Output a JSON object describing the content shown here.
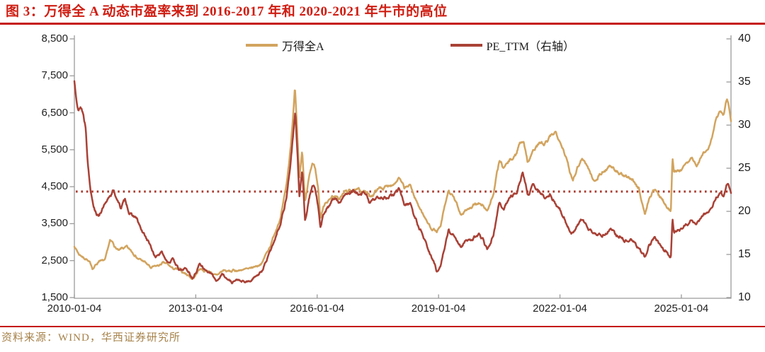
{
  "title": "图 3：万得全 A 动态市盈率来到 2016-2017 年和 2020-2021 年牛市的高位",
  "source": "资料来源：WIND，华西证券研究所",
  "colors": {
    "title_red": "#cf1d12",
    "rule_red": "#c51712",
    "source_text": "#a6824a",
    "axis_line": "#9b9b9b",
    "tick_text": "#1f1f1f"
  },
  "legend": [
    {
      "label": "万得全A",
      "color": "#d2a45f"
    },
    {
      "label": "PE_TTM（右轴）",
      "color": "#a94136"
    }
  ],
  "chart_data": {
    "type": "line",
    "title": "万得全A 与 PE_TTM",
    "grid": false,
    "legend_position": "top-center",
    "x_axis": {
      "ticks": [
        "2010-01-04",
        "2013-01-04",
        "2016-01-04",
        "2019-01-04",
        "2022-01-04",
        "2025-01-04"
      ],
      "tick_years": [
        2010,
        2013,
        2016,
        2019,
        2022,
        2025
      ],
      "range_years": [
        2010.0,
        2025.92
      ]
    },
    "left_axis": {
      "series_for": "万得全A",
      "ticks": [
        "8,500",
        "7,500",
        "6,500",
        "5,500",
        "4,500",
        "3,500",
        "2,500",
        "1,500"
      ],
      "tick_values": [
        8500,
        7500,
        6500,
        5500,
        4500,
        3500,
        2500,
        1500
      ],
      "range": [
        1500,
        8500
      ]
    },
    "right_axis": {
      "series_for": "PE_TTM（右轴）",
      "ticks": [
        "40",
        "35",
        "30",
        "25",
        "20",
        "15",
        "10"
      ],
      "tick_values": [
        40,
        35,
        30,
        25,
        20,
        15,
        10
      ],
      "range": [
        10,
        40
      ]
    },
    "reference_line": {
      "right_axis_value": 22.3,
      "style": "dotted",
      "color": "#a93a2e"
    },
    "series": [
      {
        "name": "万得全A",
        "axis": "left",
        "color": "#d2a45f",
        "points": [
          [
            2010.0,
            2915
          ],
          [
            2010.1,
            2680
          ],
          [
            2010.3,
            2560
          ],
          [
            2010.45,
            2295
          ],
          [
            2010.62,
            2510
          ],
          [
            2010.75,
            2480
          ],
          [
            2010.88,
            3000
          ],
          [
            2011.0,
            2870
          ],
          [
            2011.1,
            2760
          ],
          [
            2011.3,
            2840
          ],
          [
            2011.5,
            2650
          ],
          [
            2011.7,
            2480
          ],
          [
            2011.9,
            2300
          ],
          [
            2012.05,
            2320
          ],
          [
            2012.18,
            2440
          ],
          [
            2012.4,
            2300
          ],
          [
            2012.6,
            2220
          ],
          [
            2012.75,
            2150
          ],
          [
            2012.92,
            2010
          ],
          [
            2013.1,
            2280
          ],
          [
            2013.3,
            2230
          ],
          [
            2013.5,
            2090
          ],
          [
            2013.7,
            2230
          ],
          [
            2013.9,
            2200
          ],
          [
            2014.1,
            2260
          ],
          [
            2014.3,
            2250
          ],
          [
            2014.5,
            2330
          ],
          [
            2014.65,
            2480
          ],
          [
            2014.8,
            2800
          ],
          [
            2014.95,
            3250
          ],
          [
            2015.1,
            3700
          ],
          [
            2015.25,
            4550
          ],
          [
            2015.35,
            5600
          ],
          [
            2015.45,
            7230
          ],
          [
            2015.52,
            5600
          ],
          [
            2015.56,
            4650
          ],
          [
            2015.63,
            5400
          ],
          [
            2015.7,
            4050
          ],
          [
            2015.8,
            4700
          ],
          [
            2015.88,
            5080
          ],
          [
            2015.95,
            5020
          ],
          [
            2016.03,
            4400
          ],
          [
            2016.08,
            3650
          ],
          [
            2016.2,
            4100
          ],
          [
            2016.4,
            4250
          ],
          [
            2016.55,
            4180
          ],
          [
            2016.7,
            4350
          ],
          [
            2016.85,
            4400
          ],
          [
            2017.0,
            4380
          ],
          [
            2017.15,
            4400
          ],
          [
            2017.3,
            4230
          ],
          [
            2017.45,
            4380
          ],
          [
            2017.6,
            4500
          ],
          [
            2017.75,
            4480
          ],
          [
            2017.9,
            4650
          ],
          [
            2018.02,
            4750
          ],
          [
            2018.15,
            4450
          ],
          [
            2018.3,
            4500
          ],
          [
            2018.5,
            4000
          ],
          [
            2018.7,
            3600
          ],
          [
            2018.8,
            3400
          ],
          [
            2018.95,
            3300
          ],
          [
            2019.05,
            3400
          ],
          [
            2019.25,
            4400
          ],
          [
            2019.4,
            4100
          ],
          [
            2019.55,
            3760
          ],
          [
            2019.7,
            3900
          ],
          [
            2019.85,
            3950
          ],
          [
            2020.0,
            4050
          ],
          [
            2020.1,
            3980
          ],
          [
            2020.2,
            3830
          ],
          [
            2020.35,
            4300
          ],
          [
            2020.5,
            5150
          ],
          [
            2020.6,
            5000
          ],
          [
            2020.75,
            5150
          ],
          [
            2020.9,
            5350
          ],
          [
            2021.0,
            5680
          ],
          [
            2021.1,
            5780
          ],
          [
            2021.2,
            5200
          ],
          [
            2021.35,
            5500
          ],
          [
            2021.5,
            5700
          ],
          [
            2021.6,
            5600
          ],
          [
            2021.75,
            5800
          ],
          [
            2021.9,
            5950
          ],
          [
            2022.0,
            5800
          ],
          [
            2022.1,
            5500
          ],
          [
            2022.25,
            4900
          ],
          [
            2022.32,
            4720
          ],
          [
            2022.45,
            5100
          ],
          [
            2022.55,
            5330
          ],
          [
            2022.7,
            5000
          ],
          [
            2022.85,
            4640
          ],
          [
            2023.0,
            4850
          ],
          [
            2023.1,
            4950
          ],
          [
            2023.25,
            5100
          ],
          [
            2023.4,
            4900
          ],
          [
            2023.6,
            4750
          ],
          [
            2023.8,
            4700
          ],
          [
            2023.95,
            4450
          ],
          [
            2024.1,
            3740
          ],
          [
            2024.2,
            4200
          ],
          [
            2024.35,
            4430
          ],
          [
            2024.5,
            4200
          ],
          [
            2024.6,
            4050
          ],
          [
            2024.7,
            3940
          ],
          [
            2024.74,
            3900
          ],
          [
            2024.78,
            5370
          ],
          [
            2024.82,
            4850
          ],
          [
            2024.9,
            4950
          ],
          [
            2025.0,
            4980
          ],
          [
            2025.1,
            5150
          ],
          [
            2025.2,
            5300
          ],
          [
            2025.28,
            5120
          ],
          [
            2025.4,
            5380
          ],
          [
            2025.5,
            5500
          ],
          [
            2025.58,
            5900
          ],
          [
            2025.65,
            6350
          ],
          [
            2025.72,
            6500
          ],
          [
            2025.78,
            6420
          ],
          [
            2025.85,
            6870
          ],
          [
            2025.89,
            6600
          ],
          [
            2025.92,
            6280
          ]
        ]
      },
      {
        "name": "PE_TTM（右轴）",
        "axis": "right",
        "color": "#a94136",
        "points": [
          [
            2010.0,
            35.2
          ],
          [
            2010.05,
            33.5
          ],
          [
            2010.1,
            31.8
          ],
          [
            2010.15,
            32.3
          ],
          [
            2010.22,
            31.5
          ],
          [
            2010.28,
            30.0
          ],
          [
            2010.33,
            26.0
          ],
          [
            2010.4,
            22.5
          ],
          [
            2010.5,
            20.6
          ],
          [
            2010.6,
            19.6
          ],
          [
            2010.7,
            20.4
          ],
          [
            2010.8,
            21.0
          ],
          [
            2010.95,
            22.3
          ],
          [
            2011.05,
            21.6
          ],
          [
            2011.15,
            20.4
          ],
          [
            2011.25,
            21.2
          ],
          [
            2011.4,
            19.6
          ],
          [
            2011.55,
            19.0
          ],
          [
            2011.7,
            17.3
          ],
          [
            2011.85,
            16.3
          ],
          [
            2012.0,
            14.6
          ],
          [
            2012.15,
            15.3
          ],
          [
            2012.3,
            14.2
          ],
          [
            2012.45,
            14.5
          ],
          [
            2012.6,
            13.0
          ],
          [
            2012.75,
            13.4
          ],
          [
            2012.92,
            12.2
          ],
          [
            2013.1,
            13.9
          ],
          [
            2013.25,
            13.3
          ],
          [
            2013.5,
            12.0
          ],
          [
            2013.65,
            12.7
          ],
          [
            2013.9,
            11.8
          ],
          [
            2014.05,
            12.1
          ],
          [
            2014.2,
            11.6
          ],
          [
            2014.35,
            11.9
          ],
          [
            2014.5,
            12.6
          ],
          [
            2014.65,
            13.2
          ],
          [
            2014.8,
            14.8
          ],
          [
            2014.95,
            16.8
          ],
          [
            2015.1,
            18.8
          ],
          [
            2015.25,
            22.0
          ],
          [
            2015.35,
            26.0
          ],
          [
            2015.46,
            31.6
          ],
          [
            2015.52,
            26.0
          ],
          [
            2015.56,
            21.5
          ],
          [
            2015.63,
            24.7
          ],
          [
            2015.7,
            18.8
          ],
          [
            2015.8,
            21.5
          ],
          [
            2015.88,
            23.1
          ],
          [
            2015.95,
            22.6
          ],
          [
            2016.03,
            20.5
          ],
          [
            2016.08,
            18.4
          ],
          [
            2016.2,
            20.3
          ],
          [
            2016.4,
            21.3
          ],
          [
            2016.55,
            21.0
          ],
          [
            2016.7,
            21.8
          ],
          [
            2016.85,
            22.2
          ],
          [
            2017.0,
            21.9
          ],
          [
            2017.15,
            21.9
          ],
          [
            2017.3,
            21.0
          ],
          [
            2017.45,
            21.5
          ],
          [
            2017.6,
            21.8
          ],
          [
            2017.75,
            21.6
          ],
          [
            2017.9,
            22.0
          ],
          [
            2018.02,
            22.4
          ],
          [
            2018.15,
            20.8
          ],
          [
            2018.3,
            20.9
          ],
          [
            2018.5,
            18.3
          ],
          [
            2018.7,
            16.2
          ],
          [
            2018.8,
            15.0
          ],
          [
            2018.95,
            13.2
          ],
          [
            2019.05,
            13.6
          ],
          [
            2019.25,
            18.0
          ],
          [
            2019.4,
            16.9
          ],
          [
            2019.55,
            16.1
          ],
          [
            2019.7,
            16.6
          ],
          [
            2019.85,
            16.6
          ],
          [
            2020.0,
            17.2
          ],
          [
            2020.1,
            16.7
          ],
          [
            2020.2,
            15.5
          ],
          [
            2020.35,
            17.5
          ],
          [
            2020.5,
            21.0
          ],
          [
            2020.6,
            20.3
          ],
          [
            2020.7,
            21.0
          ],
          [
            2020.8,
            21.7
          ],
          [
            2020.9,
            22.2
          ],
          [
            2021.0,
            23.4
          ],
          [
            2021.08,
            24.5
          ],
          [
            2021.2,
            22.2
          ],
          [
            2021.35,
            22.8
          ],
          [
            2021.5,
            22.3
          ],
          [
            2021.6,
            21.6
          ],
          [
            2021.75,
            21.8
          ],
          [
            2021.9,
            20.8
          ],
          [
            2022.0,
            20.2
          ],
          [
            2022.1,
            19.3
          ],
          [
            2022.25,
            17.8
          ],
          [
            2022.32,
            17.5
          ],
          [
            2022.45,
            18.6
          ],
          [
            2022.55,
            19.3
          ],
          [
            2022.7,
            18.2
          ],
          [
            2022.85,
            17.2
          ],
          [
            2023.0,
            17.3
          ],
          [
            2023.1,
            17.6
          ],
          [
            2023.25,
            17.9
          ],
          [
            2023.4,
            17.2
          ],
          [
            2023.6,
            16.8
          ],
          [
            2023.8,
            16.5
          ],
          [
            2023.95,
            15.8
          ],
          [
            2024.1,
            14.5
          ],
          [
            2024.2,
            16.1
          ],
          [
            2024.35,
            16.8
          ],
          [
            2024.5,
            16.0
          ],
          [
            2024.6,
            15.4
          ],
          [
            2024.7,
            14.8
          ],
          [
            2024.74,
            14.7
          ],
          [
            2024.78,
            19.4
          ],
          [
            2024.82,
            17.6
          ],
          [
            2024.9,
            17.9
          ],
          [
            2025.0,
            18.0
          ],
          [
            2025.1,
            18.5
          ],
          [
            2025.2,
            18.9
          ],
          [
            2025.28,
            18.4
          ],
          [
            2025.4,
            19.3
          ],
          [
            2025.5,
            19.8
          ],
          [
            2025.58,
            20.8
          ],
          [
            2025.65,
            21.7
          ],
          [
            2025.72,
            22.3
          ],
          [
            2025.78,
            22.2
          ],
          [
            2025.85,
            23.4
          ],
          [
            2025.89,
            22.9
          ],
          [
            2025.92,
            22.1
          ]
        ]
      }
    ]
  }
}
